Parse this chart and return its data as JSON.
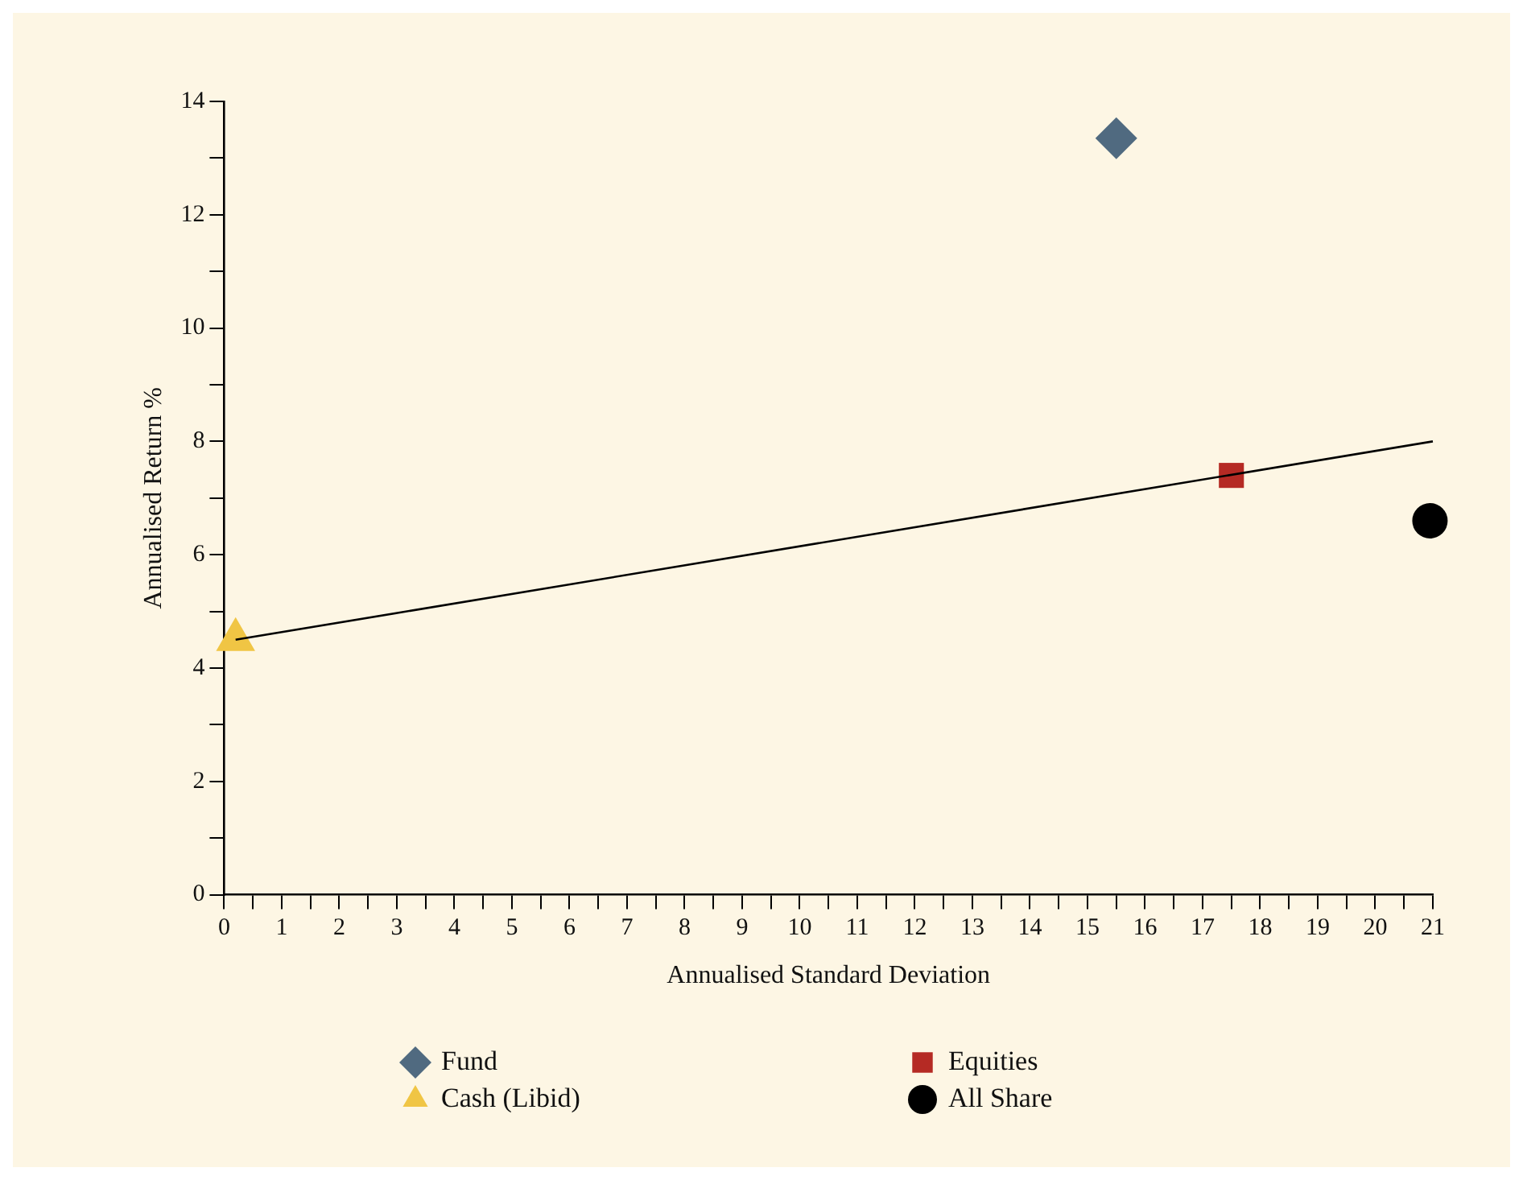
{
  "chart_data": {
    "type": "scatter",
    "xlabel": "Annualised Standard Deviation",
    "ylabel": "Annualised Return %",
    "xlim": [
      0,
      21
    ],
    "xticks": [
      0,
      {
        "value": 0.5,
        "label": null
      },
      1,
      {
        "value": 1.5,
        "label": null
      },
      2,
      {
        "value": 2.5,
        "label": null
      },
      3,
      {
        "value": 3.5,
        "label": null
      },
      4,
      {
        "value": 4.5,
        "label": null
      },
      5,
      {
        "value": 5.5,
        "label": null
      },
      6,
      {
        "value": 6.5,
        "label": null
      },
      7,
      {
        "value": 7.5,
        "label": null
      },
      8,
      {
        "value": 8.5,
        "label": null
      },
      9,
      {
        "value": 9.5,
        "label": null
      },
      10,
      {
        "value": 10.5,
        "label": null
      },
      11,
      {
        "value": 11.5,
        "label": null
      },
      12,
      {
        "value": 12.5,
        "label": null
      },
      13,
      {
        "value": 13.5,
        "label": null
      },
      14,
      {
        "value": 14.5,
        "label": null
      },
      15,
      {
        "value": 15.5,
        "label": null
      },
      16,
      {
        "value": 16.5,
        "label": null
      },
      17,
      {
        "value": 17.5,
        "label": null
      },
      18,
      {
        "value": 18.5,
        "label": null
      },
      19,
      {
        "value": 19.5,
        "label": null
      },
      20,
      {
        "value": 20.5,
        "label": null
      },
      21
    ],
    "ylim": [
      0,
      14
    ],
    "yticks": [
      0,
      {
        "value": 1,
        "label": null
      },
      2,
      {
        "value": 3,
        "label": null
      },
      4,
      {
        "value": 5,
        "label": null
      },
      6,
      {
        "value": 7,
        "label": null
      },
      8,
      {
        "value": 9,
        "label": null
      },
      10,
      {
        "value": 11,
        "label": null
      },
      12,
      {
        "value": 13,
        "label": null
      },
      14
    ],
    "grid": false,
    "legend": "bottom",
    "series": [
      {
        "name": "Fund",
        "color": "#506a80",
        "marker": "diamond",
        "x": [
          15.5
        ],
        "values": [
          13.35
        ]
      },
      {
        "name": "Equities",
        "color": "#b52a24",
        "marker": "square",
        "x": [
          17.5
        ],
        "values": [
          7.4
        ]
      },
      {
        "name": "Cash (Libid)",
        "color": "#f0c544",
        "marker": "triangle",
        "x": [
          0.2
        ],
        "values": [
          4.5
        ]
      },
      {
        "name": "All Share",
        "color": "#000000",
        "marker": "circle",
        "x": [
          20.95
        ],
        "values": [
          6.6
        ]
      },
      {
        "type": "line",
        "color": "#000000",
        "marker": "none",
        "line_style": "solid",
        "x": [
          0.2,
          21
        ],
        "values": [
          4.5,
          8.0
        ]
      }
    ]
  }
}
